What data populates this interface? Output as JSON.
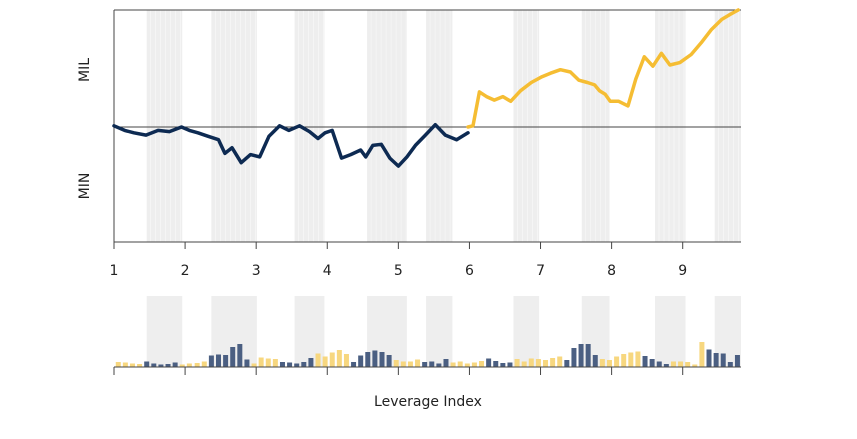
{
  "chart_data": {
    "type": "line",
    "xlabel": "Leverage Index",
    "ylabel_top": "MIL",
    "ylabel_bottom": "MIN",
    "x_ticks": [
      1,
      2,
      3,
      4,
      5,
      6,
      7,
      8,
      9
    ],
    "x_tick_labels": [
      "1",
      "2",
      "3",
      "4",
      "5",
      "6",
      "7",
      "8",
      "9"
    ],
    "xlim": [
      1,
      9.82
    ],
    "ylim": [
      -1,
      1
    ],
    "baseline": 0,
    "colors": {
      "negative_line": "#0d2a52",
      "positive_line": "#f5bd33",
      "bar_dark": "#4b5f82",
      "bar_light": "#f7d77f",
      "band": "#eeeeee"
    },
    "shaded_bands": [
      [
        1.46,
        1.96
      ],
      [
        2.37,
        3.01
      ],
      [
        3.54,
        3.96
      ],
      [
        4.56,
        5.12
      ],
      [
        5.39,
        5.76
      ],
      [
        6.62,
        6.98
      ],
      [
        7.58,
        7.97
      ],
      [
        8.61,
        9.04
      ],
      [
        9.45,
        9.82
      ]
    ],
    "series": [
      {
        "segment": "negative",
        "x": [
          1.0,
          1.15,
          1.28,
          1.45,
          1.62,
          1.78,
          1.95,
          2.06,
          2.18,
          2.32,
          2.47,
          2.56,
          2.66,
          2.79,
          2.92,
          3.05,
          3.18,
          3.33,
          3.46,
          3.61,
          3.75,
          3.87,
          3.97,
          4.07,
          4.2,
          4.33,
          4.47,
          4.54,
          4.64,
          4.76,
          4.88,
          5.0,
          5.12,
          5.24,
          5.38,
          5.52,
          5.66,
          5.82,
          5.98
        ],
        "y": [
          0.01,
          -0.03,
          -0.05,
          -0.07,
          -0.03,
          -0.04,
          0.0,
          -0.03,
          -0.05,
          -0.08,
          -0.11,
          -0.23,
          -0.18,
          -0.31,
          -0.24,
          -0.26,
          -0.08,
          0.01,
          -0.03,
          0.01,
          -0.04,
          -0.1,
          -0.05,
          -0.03,
          -0.27,
          -0.24,
          -0.2,
          -0.26,
          -0.16,
          -0.15,
          -0.27,
          -0.34,
          -0.26,
          -0.16,
          -0.07,
          0.02,
          -0.07,
          -0.11,
          -0.05
        ]
      },
      {
        "segment": "positive",
        "x": [
          5.98,
          6.05,
          6.14,
          6.24,
          6.35,
          6.47,
          6.58,
          6.72,
          6.87,
          7.02,
          7.14,
          7.28,
          7.42,
          7.54,
          7.66,
          7.76,
          7.83,
          7.91,
          7.98,
          8.1,
          8.23,
          8.34,
          8.46,
          8.58,
          8.7,
          8.82,
          8.96,
          9.12,
          9.26,
          9.4,
          9.55,
          9.66,
          9.78
        ],
        "y": [
          0.0,
          0.01,
          0.3,
          0.26,
          0.23,
          0.26,
          0.22,
          0.31,
          0.38,
          0.43,
          0.46,
          0.49,
          0.47,
          0.4,
          0.38,
          0.36,
          0.31,
          0.28,
          0.22,
          0.22,
          0.18,
          0.41,
          0.6,
          0.52,
          0.63,
          0.53,
          0.55,
          0.62,
          0.72,
          0.83,
          0.92,
          0.96,
          1.0
        ]
      }
    ],
    "bars": {
      "x": [
        1.06,
        1.16,
        1.26,
        1.36,
        1.46,
        1.56,
        1.66,
        1.76,
        1.86,
        1.96,
        2.06,
        2.17,
        2.27,
        2.37,
        2.47,
        2.57,
        2.67,
        2.77,
        2.87,
        2.97,
        3.07,
        3.17,
        3.27,
        3.37,
        3.47,
        3.57,
        3.67,
        3.77,
        3.87,
        3.97,
        4.07,
        4.17,
        4.27,
        4.37,
        4.47,
        4.57,
        4.67,
        4.77,
        4.87,
        4.97,
        5.07,
        5.17,
        5.27,
        5.37,
        5.47,
        5.57,
        5.67,
        5.77,
        5.87,
        5.97,
        6.07,
        6.17,
        6.27,
        6.37,
        6.47,
        6.57,
        6.67,
        6.77,
        6.87,
        6.97,
        7.07,
        7.17,
        7.27,
        7.37,
        7.47,
        7.57,
        7.67,
        7.77,
        7.87,
        7.97,
        8.07,
        8.17,
        8.27,
        8.37,
        8.47,
        8.57,
        8.67,
        8.77,
        8.87,
        8.97,
        9.07,
        9.17,
        9.27,
        9.37,
        9.47,
        9.57,
        9.67,
        9.77
      ],
      "values": [
        0.1,
        0.09,
        0.07,
        0.06,
        0.11,
        0.07,
        0.05,
        0.06,
        0.09,
        0.05,
        0.07,
        0.08,
        0.11,
        0.23,
        0.25,
        0.24,
        0.4,
        0.46,
        0.15,
        0.07,
        0.19,
        0.17,
        0.16,
        0.1,
        0.09,
        0.07,
        0.1,
        0.18,
        0.27,
        0.21,
        0.29,
        0.34,
        0.26,
        0.1,
        0.23,
        0.3,
        0.33,
        0.3,
        0.24,
        0.14,
        0.11,
        0.11,
        0.15,
        0.1,
        0.11,
        0.07,
        0.16,
        0.09,
        0.11,
        0.07,
        0.09,
        0.12,
        0.17,
        0.12,
        0.08,
        0.09,
        0.16,
        0.11,
        0.17,
        0.16,
        0.14,
        0.18,
        0.21,
        0.14,
        0.38,
        0.46,
        0.46,
        0.24,
        0.16,
        0.14,
        0.21,
        0.26,
        0.29,
        0.31,
        0.22,
        0.16,
        0.11,
        0.06,
        0.11,
        0.11,
        0.1,
        0.05,
        0.5,
        0.35,
        0.28,
        0.27,
        0.1,
        0.24
      ],
      "sign": [
        "p",
        "p",
        "p",
        "p",
        "n",
        "n",
        "n",
        "n",
        "n",
        "p",
        "p",
        "p",
        "p",
        "n",
        "n",
        "n",
        "n",
        "n",
        "n",
        "p",
        "p",
        "p",
        "p",
        "n",
        "n",
        "n",
        "n",
        "n",
        "p",
        "p",
        "p",
        "p",
        "p",
        "n",
        "n",
        "n",
        "n",
        "n",
        "n",
        "p",
        "p",
        "p",
        "p",
        "n",
        "n",
        "n",
        "n",
        "p",
        "p",
        "p",
        "p",
        "p",
        "n",
        "n",
        "n",
        "n",
        "p",
        "p",
        "p",
        "p",
        "p",
        "p",
        "p",
        "n",
        "n",
        "n",
        "n",
        "n",
        "p",
        "p",
        "p",
        "p",
        "p",
        "p",
        "n",
        "n",
        "n",
        "n",
        "p",
        "p",
        "p",
        "p",
        "p",
        "n",
        "n",
        "n",
        "n",
        "n"
      ]
    }
  }
}
